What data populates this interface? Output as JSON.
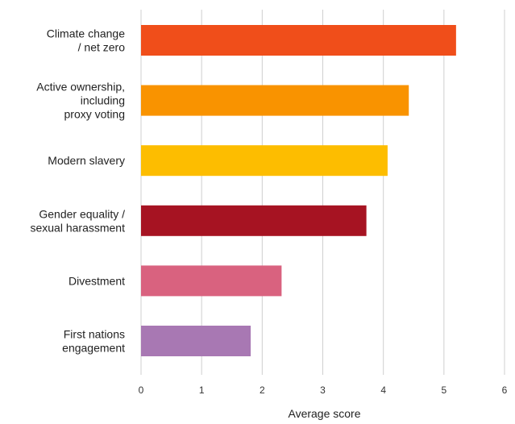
{
  "chart_data": {
    "type": "bar",
    "orientation": "horizontal",
    "categories": [
      [
        "Climate change",
        "/ net zero"
      ],
      [
        "Active ownership,",
        "including",
        "proxy voting"
      ],
      [
        "Modern slavery"
      ],
      [
        "Gender equality /",
        "sexual harassment"
      ],
      [
        "Divestment"
      ],
      [
        "First nations",
        "engagement"
      ]
    ],
    "values": [
      5.2,
      4.42,
      4.07,
      3.72,
      2.32,
      1.81
    ],
    "colors": [
      "#F04E1A",
      "#F99300",
      "#FDBD00",
      "#A61322",
      "#D9627F",
      "#A878B3"
    ],
    "xlabel": "Average score",
    "ylabel": "",
    "xlim": [
      0,
      6
    ],
    "xticks": [
      0,
      1,
      2,
      3,
      4,
      5,
      6
    ],
    "grid": "vertical",
    "legend": "none"
  }
}
